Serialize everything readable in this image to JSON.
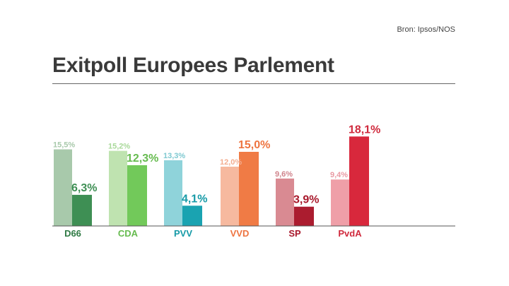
{
  "source": "Bron: Ipsos/NOS",
  "title": "Exitpoll Europees Parlement",
  "chart_data": {
    "type": "bar",
    "title": "Exitpoll Europees Parlement",
    "categories": [
      "D66",
      "CDA",
      "PVV",
      "VVD",
      "SP",
      "PvdA"
    ],
    "series": [
      {
        "values": [
          15.5,
          15.2,
          13.3,
          12.0,
          9.6,
          9.4
        ]
      },
      {
        "values": [
          6.3,
          12.3,
          4.1,
          15.0,
          3.9,
          18.1
        ]
      }
    ],
    "labels_prev": [
      "15,5%",
      "15,2%",
      "13,3%",
      "12,0%",
      "9,6%",
      "9,4%"
    ],
    "labels_curr": [
      "6,3%",
      "12,3%",
      "4,1%",
      "15,0%",
      "3,9%",
      "18,1%"
    ],
    "colors_prev": [
      "#a8c9ab",
      "#bfe3b0",
      "#8fd3da",
      "#f6b99f",
      "#d98a92",
      "#ef9fa8"
    ],
    "colors_curr": [
      "#3e8f54",
      "#72c95a",
      "#1aa3b1",
      "#f07b45",
      "#ab1c2f",
      "#d8283c"
    ],
    "label_colors_prev": [
      "#a8c9ab",
      "#a9d99a",
      "#7fc9d1",
      "#f3ad90",
      "#d0848c",
      "#e99aa3"
    ],
    "label_colors_curr": [
      "#3e8f54",
      "#66bb4f",
      "#169aa7",
      "#ee7440",
      "#a8182b",
      "#d02a3d"
    ],
    "category_colors": [
      "#2f7a44",
      "#66bb4f",
      "#169aa7",
      "#ee7440",
      "#a8182b",
      "#d02a3d"
    ],
    "ylim": [
      0,
      20
    ],
    "grid": false,
    "legend": "none"
  }
}
